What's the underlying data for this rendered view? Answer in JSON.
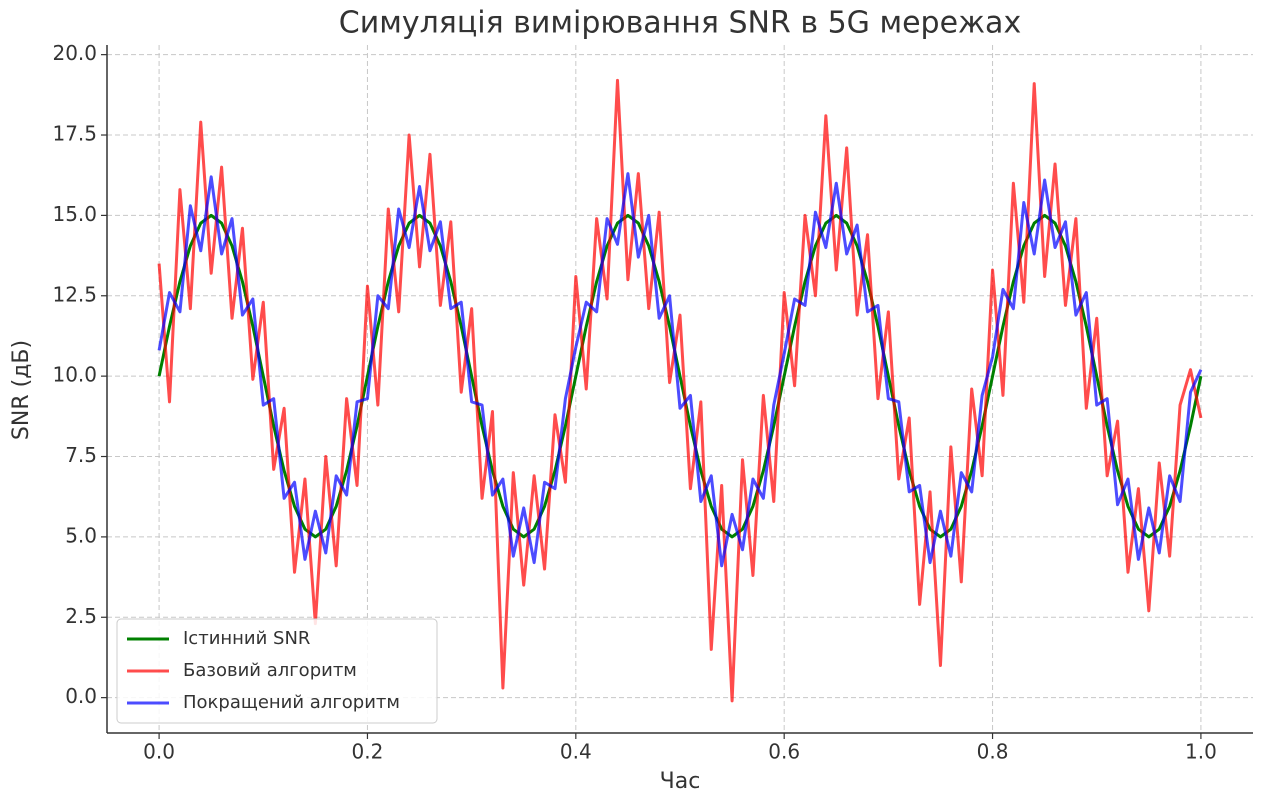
{
  "chart_data": {
    "type": "line",
    "title": "Симуляція вимірювання SNR в 5G мережах",
    "xlabel": "Час",
    "ylabel": "SNR (дБ)",
    "x": [
      0,
      0.01,
      0.02,
      0.03,
      0.04,
      0.05,
      0.06,
      0.07,
      0.08,
      0.09,
      0.1,
      0.11,
      0.12,
      0.13,
      0.14,
      0.15,
      0.16,
      0.17,
      0.18,
      0.19,
      0.2,
      0.21,
      0.22,
      0.23,
      0.24,
      0.25,
      0.26,
      0.27,
      0.28,
      0.29,
      0.3,
      0.31,
      0.32,
      0.33,
      0.34,
      0.35,
      0.36,
      0.37,
      0.38,
      0.39,
      0.4,
      0.41,
      0.42,
      0.43,
      0.44,
      0.45,
      0.46,
      0.47,
      0.48,
      0.49,
      0.5,
      0.51,
      0.52,
      0.53,
      0.54,
      0.55,
      0.56,
      0.57,
      0.58,
      0.59,
      0.6,
      0.61,
      0.62,
      0.63,
      0.64,
      0.65,
      0.66,
      0.67,
      0.68,
      0.69,
      0.7,
      0.71,
      0.72,
      0.73,
      0.74,
      0.75,
      0.76,
      0.77,
      0.78,
      0.79,
      0.8,
      0.81,
      0.82,
      0.83,
      0.84,
      0.85,
      0.86,
      0.87,
      0.88,
      0.89,
      0.9,
      0.91,
      0.92,
      0.93,
      0.94,
      0.95,
      0.96,
      0.97,
      0.98,
      0.99,
      1
    ],
    "series": [
      {
        "name": "Істинний SNR",
        "color": "#008000",
        "opacity": 1,
        "width": 3,
        "values": [
          10,
          11.55,
          12.94,
          14.05,
          14.76,
          15,
          14.76,
          14.05,
          12.94,
          11.55,
          10,
          8.45,
          7.06,
          5.95,
          5.24,
          5,
          5.24,
          5.95,
          7.06,
          8.45,
          10,
          11.55,
          12.94,
          14.05,
          14.76,
          15,
          14.76,
          14.05,
          12.94,
          11.55,
          10,
          8.45,
          7.06,
          5.95,
          5.24,
          5,
          5.24,
          5.95,
          7.06,
          8.45,
          10,
          11.55,
          12.94,
          14.05,
          14.76,
          15,
          14.76,
          14.05,
          12.94,
          11.55,
          10,
          8.45,
          7.06,
          5.95,
          5.24,
          5,
          5.24,
          5.95,
          7.06,
          8.45,
          10,
          11.55,
          12.94,
          14.05,
          14.76,
          15,
          14.76,
          14.05,
          12.94,
          11.55,
          10,
          8.45,
          7.06,
          5.95,
          5.24,
          5,
          5.24,
          5.95,
          7.06,
          8.45,
          10,
          11.55,
          12.94,
          14.05,
          14.76,
          15,
          14.76,
          14.05,
          12.94,
          11.55,
          10,
          8.45,
          7.06,
          5.95,
          5.24,
          5,
          5.24,
          5.95,
          7.06,
          8.45,
          10
        ]
      },
      {
        "name": "Базовий алгоритм",
        "color": "#ff0000",
        "opacity": 0.7,
        "width": 3,
        "values": [
          13.5,
          9.2,
          15.8,
          12.1,
          17.9,
          13.2,
          16.5,
          11.8,
          14.6,
          9.9,
          12.3,
          7.1,
          9.0,
          3.9,
          6.8,
          2.3,
          7.5,
          4.1,
          9.3,
          6.6,
          12.8,
          9.1,
          15.2,
          12.0,
          17.5,
          13.4,
          16.9,
          12.2,
          14.8,
          9.5,
          12.1,
          6.2,
          8.9,
          0.3,
          7.0,
          3.5,
          6.9,
          4.0,
          8.8,
          6.7,
          13.1,
          9.6,
          14.9,
          12.4,
          19.2,
          13.0,
          16.3,
          12.1,
          15.1,
          9.8,
          11.9,
          6.5,
          9.2,
          1.5,
          6.6,
          -0.1,
          7.4,
          3.8,
          9.4,
          6.1,
          12.6,
          9.7,
          15.0,
          12.5,
          18.1,
          13.3,
          17.1,
          11.9,
          14.4,
          9.3,
          12.0,
          6.8,
          8.7,
          2.9,
          6.4,
          1.0,
          7.8,
          3.6,
          9.6,
          6.9,
          13.3,
          9.4,
          16.0,
          12.3,
          19.1,
          13.1,
          16.6,
          12.2,
          14.9,
          9.0,
          11.8,
          6.9,
          8.6,
          3.9,
          6.5,
          2.7,
          7.3,
          4.4,
          9.1,
          10.2,
          8.7
        ]
      },
      {
        "name": "Покращений алгоритм",
        "color": "#0000ff",
        "opacity": 0.7,
        "width": 3,
        "values": [
          10.8,
          12.6,
          12.0,
          15.3,
          13.9,
          16.2,
          13.8,
          14.9,
          11.9,
          12.4,
          9.1,
          9.3,
          6.2,
          6.7,
          4.3,
          5.8,
          4.5,
          6.9,
          6.3,
          9.2,
          9.3,
          12.5,
          12.1,
          15.2,
          14.0,
          15.9,
          13.9,
          14.8,
          12.1,
          12.3,
          9.2,
          9.1,
          6.3,
          6.8,
          4.4,
          5.9,
          4.2,
          6.7,
          6.5,
          9.3,
          10.9,
          12.3,
          12.0,
          14.9,
          14.1,
          16.3,
          13.7,
          15.0,
          11.8,
          12.5,
          9.0,
          9.4,
          6.1,
          6.9,
          4.1,
          5.7,
          4.6,
          6.8,
          6.2,
          9.1,
          10.7,
          12.4,
          12.2,
          15.1,
          14.0,
          16.0,
          13.8,
          14.7,
          12.0,
          12.2,
          9.3,
          9.2,
          6.4,
          6.6,
          4.2,
          5.8,
          4.4,
          7.0,
          6.4,
          9.4,
          10.6,
          12.7,
          12.1,
          15.4,
          13.8,
          16.1,
          14.0,
          14.8,
          11.9,
          12.6,
          9.1,
          9.3,
          6.0,
          6.8,
          4.3,
          5.9,
          4.5,
          6.9,
          6.1,
          9.5,
          10.2
        ]
      }
    ],
    "xlim": [
      -0.05,
      1.05
    ],
    "ylim": [
      -1.1,
      20.3
    ],
    "xticks": [
      {
        "value": 0,
        "label": "0.0"
      },
      {
        "value": 0.2,
        "label": "0.2"
      },
      {
        "value": 0.4,
        "label": "0.4"
      },
      {
        "value": 0.6,
        "label": "0.6"
      },
      {
        "value": 0.8,
        "label": "0.8"
      },
      {
        "value": 1,
        "label": "1.0"
      }
    ],
    "yticks": [
      {
        "value": 0,
        "label": "0.0"
      },
      2.5,
      {
        "value": 5,
        "label": "5.0"
      },
      7.5,
      {
        "value": 10,
        "label": "10.0"
      },
      12.5,
      {
        "value": 15,
        "label": "15.0"
      },
      17.5,
      {
        "value": 20,
        "label": "20.0"
      }
    ],
    "grid": true,
    "legend": "lower left"
  }
}
